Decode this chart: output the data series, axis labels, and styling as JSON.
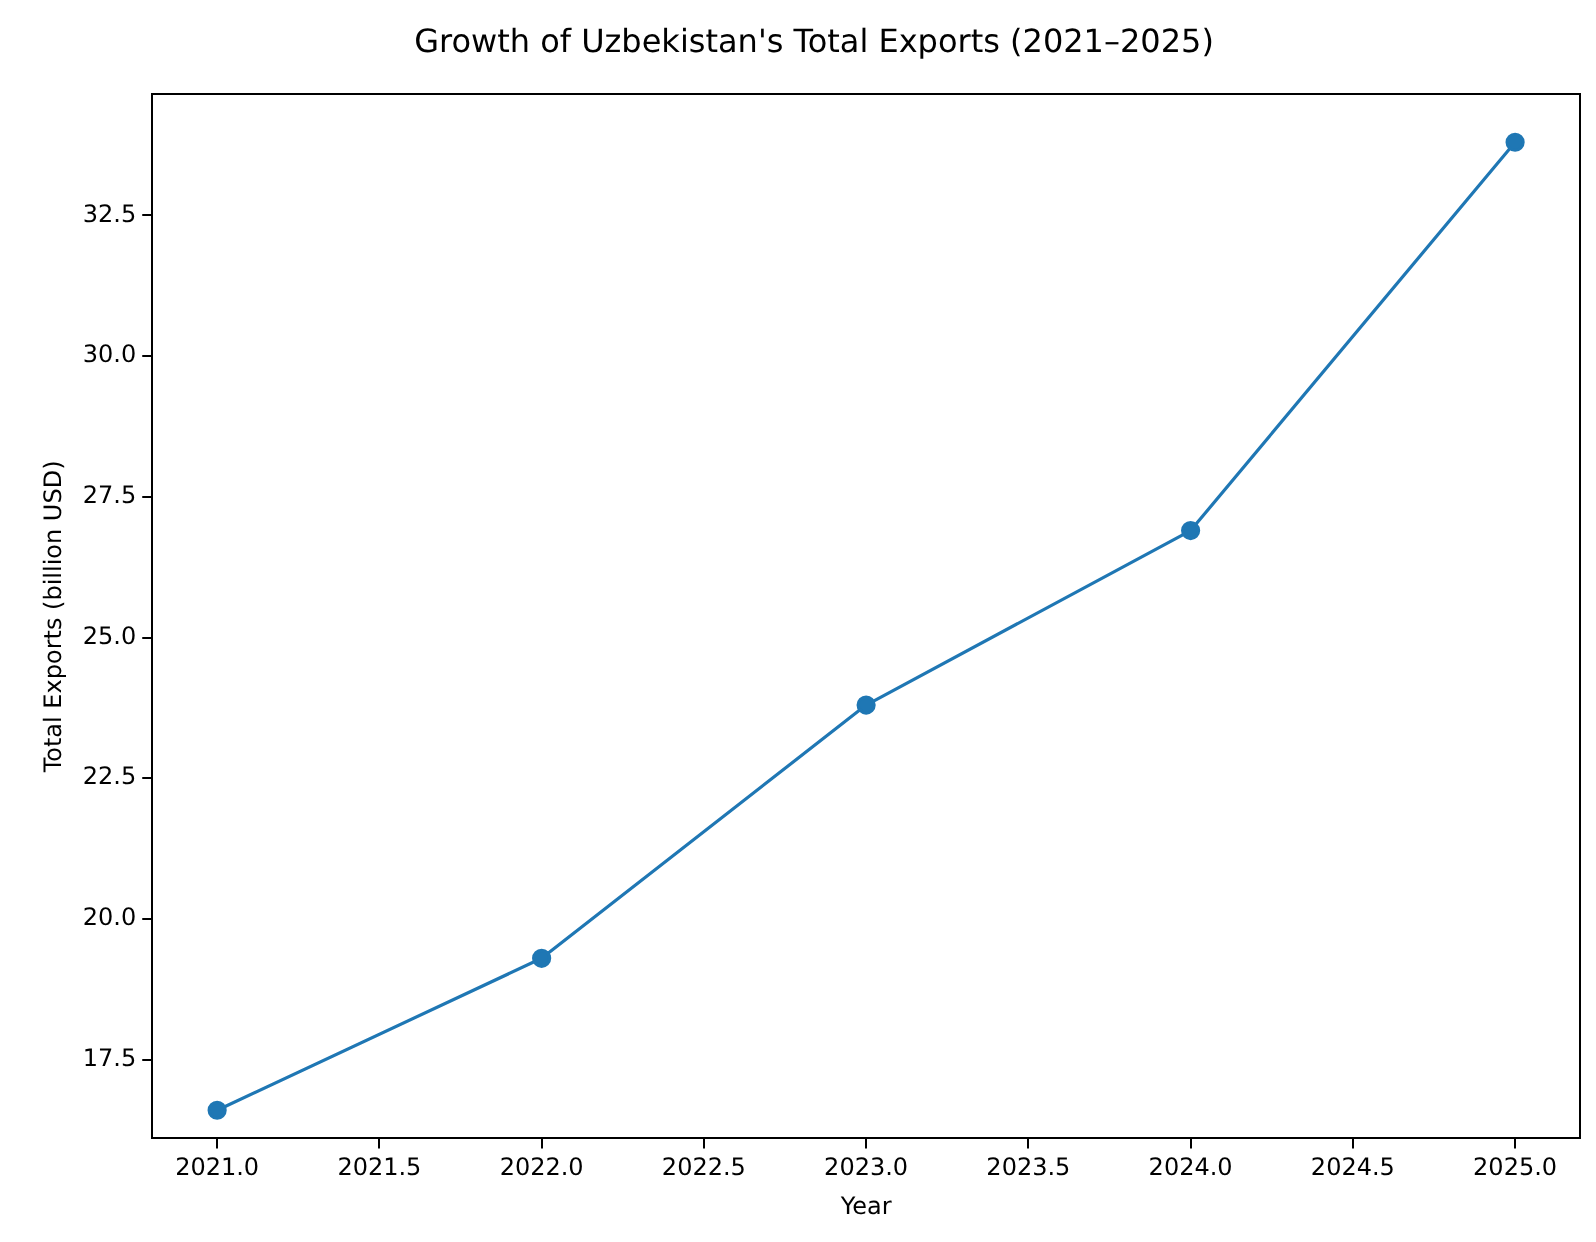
{
  "chart_data": {
    "type": "line",
    "title": "Growth of Uzbekistan's Total Exports (2021–2025)",
    "xlabel": "Year",
    "ylabel": "Total Exports (billion USD)",
    "x": [
      2021,
      2022,
      2023,
      2024,
      2025
    ],
    "series": [
      {
        "color": "#1f77b4",
        "values": [
          16.6,
          19.3,
          23.8,
          26.9,
          33.8
        ]
      }
    ],
    "xlim": [
      2020.8,
      2025.2
    ],
    "xticks": [
      {
        "value": 2021,
        "label": "2021.0"
      },
      {
        "value": 2021.5,
        "label": "2021.5"
      },
      {
        "value": 2022,
        "label": "2022.0"
      },
      {
        "value": 2022.5,
        "label": "2022.5"
      },
      {
        "value": 2023,
        "label": "2023.0"
      },
      {
        "value": 2023.5,
        "label": "2023.5"
      },
      {
        "value": 2024,
        "label": "2024.0"
      },
      {
        "value": 2024.5,
        "label": "2024.5"
      },
      {
        "value": 2025,
        "label": "2025.0"
      }
    ],
    "ylim": [
      16.1,
      34.65
    ],
    "yticks": [
      {
        "value": 17.5,
        "label": "17.5"
      },
      {
        "value": 20,
        "label": "20.0"
      },
      {
        "value": 22.5,
        "label": "22.5"
      },
      {
        "value": 25,
        "label": "25.0"
      },
      {
        "value": 27.5,
        "label": "27.5"
      },
      {
        "value": 30,
        "label": "30.0"
      },
      {
        "value": 32.5,
        "label": "32.5"
      }
    ],
    "grid": false,
    "legend": false,
    "marker": "circle",
    "line_style": "solid"
  }
}
